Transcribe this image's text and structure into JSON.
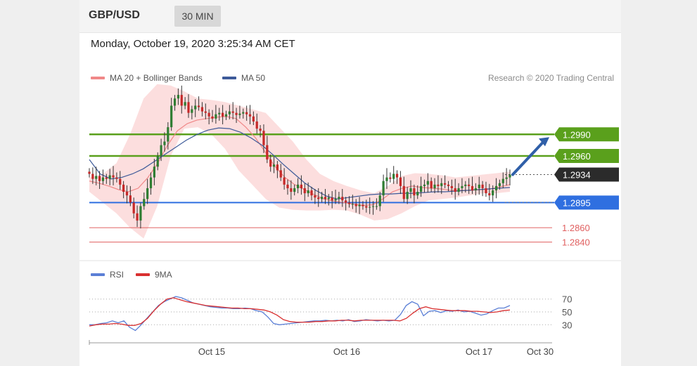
{
  "header": {
    "pair": "GBP/USD",
    "timeframe": "30 MIN"
  },
  "datetime": "Monday, October 19, 2020 3:25:34 AM CET",
  "legend": {
    "ma20": "MA 20 + Bollinger Bands",
    "ma50": "MA 50"
  },
  "credit": "Research © 2020 Trading Central",
  "rsi_legend": {
    "rsi": "RSI",
    "ma": "9MA"
  },
  "colors": {
    "resistance": "#5aa01c",
    "support": "#2f6fe0",
    "last_price": "#2b2b2b",
    "minor_level": "#e06060",
    "ma20": "#f08888",
    "ma50": "#3d5a99",
    "bollinger": "#fcd8d8",
    "arrow": "#2f5fa8",
    "up_candle": "#2e7d32",
    "down_candle": "#c62828",
    "rsi": "#5b7fd6",
    "rsi_ma": "#d93030"
  },
  "chart_data": [
    {
      "type": "candlestick",
      "title": "GBP/USD 30 MIN",
      "ylim": [
        1.282,
        1.305
      ],
      "x_ticks": [
        "Oct 15",
        "Oct 16",
        "Oct 17",
        "Oct 30"
      ],
      "levels": [
        {
          "label": "1.2990",
          "value": 1.299,
          "kind": "resistance"
        },
        {
          "label": "1.2960",
          "value": 1.296,
          "kind": "resistance"
        },
        {
          "label": "1.2934",
          "value": 1.2934,
          "kind": "last"
        },
        {
          "label": "1.2895",
          "value": 1.2895,
          "kind": "support"
        },
        {
          "label": "1.2860",
          "value": 1.286,
          "kind": "minor"
        },
        {
          "label": "1.2840",
          "value": 1.284,
          "kind": "minor"
        }
      ],
      "close": [
        1.2935,
        1.2928,
        1.2932,
        1.2925,
        1.293,
        1.2928,
        1.2933,
        1.293,
        1.2928,
        1.292,
        1.291,
        1.2905,
        1.2895,
        1.288,
        1.287,
        1.289,
        1.29,
        1.2915,
        1.293,
        1.2945,
        1.296,
        1.2975,
        1.298,
        1.3,
        1.303,
        1.304,
        1.3045,
        1.303,
        1.3035,
        1.302,
        1.3025,
        1.303,
        1.3028,
        1.3022,
        1.302,
        1.3015,
        1.3012,
        1.3018,
        1.302,
        1.3015,
        1.3018,
        1.3022,
        1.302,
        1.3017,
        1.3019,
        1.3021,
        1.3018,
        1.3015,
        1.3008,
        1.2998,
        1.2995,
        1.2975,
        1.2955,
        1.2945,
        1.2948,
        1.294,
        1.293,
        1.292,
        1.2915,
        1.291,
        1.2915,
        1.292,
        1.2915,
        1.2908,
        1.2912,
        1.2905,
        1.2902,
        1.29,
        1.2903,
        1.29,
        1.2902,
        1.2898,
        1.29,
        1.2903,
        1.2898,
        1.2895,
        1.2893,
        1.2893,
        1.289,
        1.2892,
        1.289,
        1.2888,
        1.2889,
        1.289,
        1.289,
        1.2905,
        1.2925,
        1.293,
        1.2928,
        1.2935,
        1.293,
        1.2918,
        1.29,
        1.291,
        1.2915,
        1.2905,
        1.291,
        1.2918,
        1.292,
        1.2925,
        1.2915,
        1.292,
        1.2918,
        1.2922,
        1.292,
        1.2918,
        1.2915,
        1.291,
        1.2915,
        1.2918,
        1.292,
        1.2918,
        1.2912,
        1.2915,
        1.292,
        1.2915,
        1.2908,
        1.2905,
        1.2912,
        1.2918,
        1.2922,
        1.2928,
        1.293,
        1.2934
      ],
      "ma20": [
        1.2925,
        1.2922,
        1.2918,
        1.2913,
        1.291,
        1.2915,
        1.293,
        1.295,
        1.2975,
        1.2995,
        1.3005,
        1.301,
        1.3012,
        1.3014,
        1.3015,
        1.3012,
        1.3,
        1.2985,
        1.2965,
        1.2945,
        1.293,
        1.292,
        1.2913,
        1.2906,
        1.29,
        1.2897,
        1.2895,
        1.2893,
        1.2891,
        1.2892,
        1.29,
        1.291,
        1.2915,
        1.2918,
        1.2916,
        1.2915,
        1.2914,
        1.2912,
        1.2912,
        1.2912,
        1.2913,
        1.2914,
        1.2917,
        1.292
      ],
      "ma50": [
        1.2955,
        1.2935,
        1.2928,
        1.293,
        1.2935,
        1.2942,
        1.2952,
        1.2962,
        1.2972,
        1.2982,
        1.299,
        1.2996,
        1.2999,
        1.2998,
        1.2993,
        1.2985,
        1.2975,
        1.2962,
        1.2948,
        1.2935,
        1.2922,
        1.2912,
        1.2904,
        1.29,
        1.2902,
        1.2904,
        1.2906,
        1.2907,
        1.2907,
        1.2908,
        1.2908,
        1.2909,
        1.291,
        1.291,
        1.2911,
        1.2912,
        1.2913,
        1.2914,
        1.2915,
        1.2916
      ],
      "bollinger_upper": [
        1.293,
        1.2935,
        1.295,
        1.299,
        1.304,
        1.306,
        1.3058,
        1.305,
        1.304,
        1.3038,
        1.3035,
        1.303,
        1.3025,
        1.302,
        1.3,
        1.298,
        1.2955,
        1.2935,
        1.2925,
        1.2918,
        1.2912,
        1.2908,
        1.2918,
        1.2932,
        1.2936,
        1.2935,
        1.2933,
        1.293,
        1.2932,
        1.2934,
        1.2936,
        1.2938
      ],
      "bollinger_lower": [
        1.291,
        1.2895,
        1.288,
        1.286,
        1.2845,
        1.289,
        1.296,
        1.2998,
        1.3,
        1.299,
        1.297,
        1.294,
        1.292,
        1.29,
        1.2888,
        1.2885,
        1.2884,
        1.2884,
        1.2885,
        1.2884,
        1.2878,
        1.287,
        1.2872,
        1.288,
        1.289,
        1.2898,
        1.29,
        1.2902,
        1.2905,
        1.2908,
        1.2908,
        1.291
      ]
    },
    {
      "type": "line",
      "title": "RSI",
      "ylim": [
        15,
        85
      ],
      "y_ticks": [
        "70",
        "50",
        "30"
      ],
      "y_tick_values": [
        70,
        50,
        30
      ],
      "series": [
        {
          "name": "RSI",
          "values": [
            30,
            30,
            32,
            33,
            36,
            33,
            36,
            26,
            21,
            30,
            40,
            50,
            60,
            66,
            70,
            74,
            72,
            68,
            64,
            62,
            60,
            58,
            57,
            56,
            56,
            55,
            55,
            56,
            55,
            52,
            50,
            42,
            32,
            30,
            31,
            32,
            33,
            34,
            35,
            36,
            36,
            37,
            36,
            37,
            36,
            38,
            35,
            36,
            38,
            37,
            36,
            37,
            36,
            37,
            46,
            60,
            66,
            62,
            44,
            51,
            52,
            49,
            52,
            51,
            53,
            50,
            51,
            48,
            45,
            47,
            52,
            56,
            56,
            60
          ]
        },
        {
          "name": "9MA",
          "values": [
            28,
            30,
            31,
            31,
            32,
            31,
            29,
            29,
            32,
            40,
            52,
            62,
            70,
            72,
            69,
            66,
            64,
            62,
            60,
            59,
            58,
            57,
            56,
            56,
            55,
            55,
            54,
            53,
            50,
            45,
            38,
            35,
            34,
            34,
            34,
            35,
            35,
            36,
            36,
            37,
            37,
            36,
            37,
            37,
            37,
            37,
            37,
            37,
            36,
            40,
            48,
            55,
            58,
            55,
            54,
            53,
            52,
            52,
            52,
            51,
            51,
            50,
            49,
            50,
            52,
            53
          ]
        }
      ],
      "x_ticks": [
        "Oct 15",
        "Oct 16",
        "Oct 17",
        "Oct 30"
      ]
    }
  ]
}
